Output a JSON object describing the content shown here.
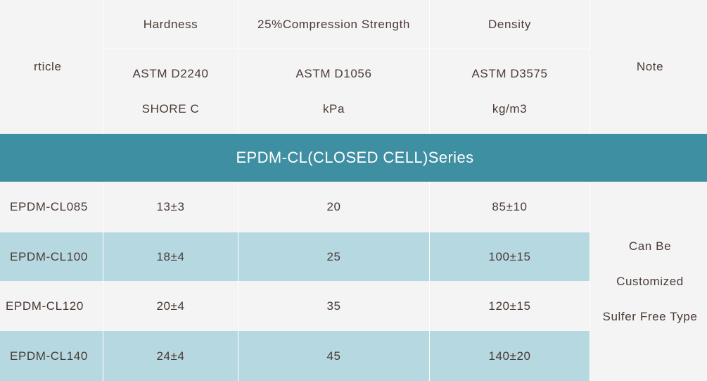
{
  "header": {
    "article": "rticle",
    "hardness": "Hardness",
    "compression": "25%Compression Strength",
    "density": "Density",
    "note": "Note",
    "hardness_std": "ASTM D2240",
    "hardness_unit": "SHORE C",
    "compression_std": "ASTM D1056",
    "compression_unit": "kPa",
    "density_std": "ASTM D3575",
    "density_unit": "kg/m3"
  },
  "series_title": "EPDM-CL(CLOSED CELL)Series",
  "rows": [
    {
      "article": "EPDM-CL085",
      "hardness": "13±3",
      "compression": "20",
      "density": "85±10"
    },
    {
      "article": "EPDM-CL100",
      "hardness": "18±4",
      "compression": "25",
      "density": "100±15"
    },
    {
      "article": "EPDM-CL120",
      "hardness": "20±4",
      "compression": "35",
      "density": "120±15"
    },
    {
      "article": "EPDM-CL140",
      "hardness": "24±4",
      "compression": "45",
      "density": "140±20"
    }
  ],
  "note_lines": [
    "Can Be",
    "Customized",
    "Sulfer Free Type"
  ],
  "colors": {
    "header_bg": "#f4f4f4",
    "series_bg": "#3f8fa3",
    "row_alt_bg": "#b6d9e1",
    "text": "#4a3a36"
  }
}
